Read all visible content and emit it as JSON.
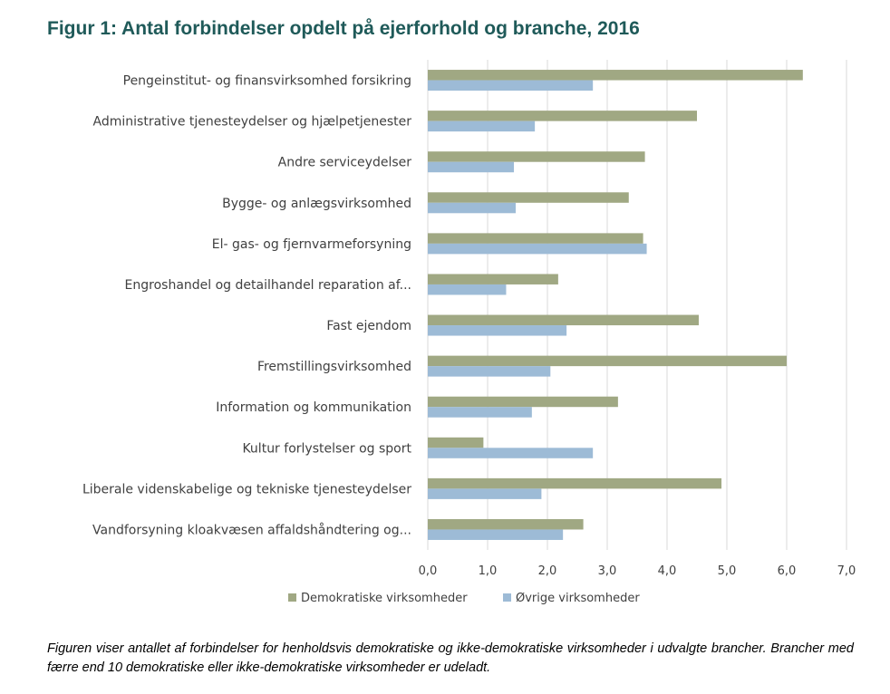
{
  "title": "Figur 1: Antal forbindelser opdelt på ejerforhold og branche, 2016",
  "caption": "Figuren viser antallet af forbindelser for henholdsvis demokratiske og ikke-demokratiske virksomheder i udvalgte brancher. Brancher med færre end 10 demokratiske eller ikke-demokratiske virksomheder er udeladt.",
  "colors": {
    "series_0": "#a0a883",
    "series_1": "#9dbbd6",
    "grid": "#d9d9d9",
    "title": "#1f5a59"
  },
  "chart_data": {
    "type": "bar",
    "orientation": "horizontal",
    "categories": [
      "Pengeinstitut- og finansvirksomhed forsikring",
      "Administrative tjenesteydelser og hjælpetjenester",
      "Andre serviceydelser",
      "Bygge- og anlægsvirksomhed",
      "El- gas- og fjernvarmeforsyning",
      "Engroshandel og detailhandel reparation af...",
      "Fast ejendom",
      "Fremstillingsvirksomhed",
      "Information og kommunikation",
      "Kultur forlystelser og sport",
      "Liberale videnskabelige og tekniske tjenesteydelser",
      "Vandforsyning kloakvæsen affaldshåndtering og..."
    ],
    "series": [
      {
        "name": "Demokratiske virksomheder",
        "values": [
          6.27,
          4.5,
          3.63,
          3.36,
          3.6,
          2.18,
          4.53,
          6.0,
          3.18,
          0.93,
          4.91,
          2.6
        ]
      },
      {
        "name": "Øvrige virksomheder",
        "values": [
          2.76,
          1.79,
          1.44,
          1.47,
          3.66,
          1.31,
          2.32,
          2.05,
          1.74,
          2.76,
          1.9,
          2.26
        ]
      }
    ],
    "xlim": [
      0,
      7
    ],
    "xticks": [
      "0,0",
      "1,0",
      "2,0",
      "3,0",
      "4,0",
      "5,0",
      "6,0",
      "7,0"
    ],
    "grid": "vertical",
    "legend": "bottom",
    "xlabel": "",
    "ylabel": ""
  }
}
